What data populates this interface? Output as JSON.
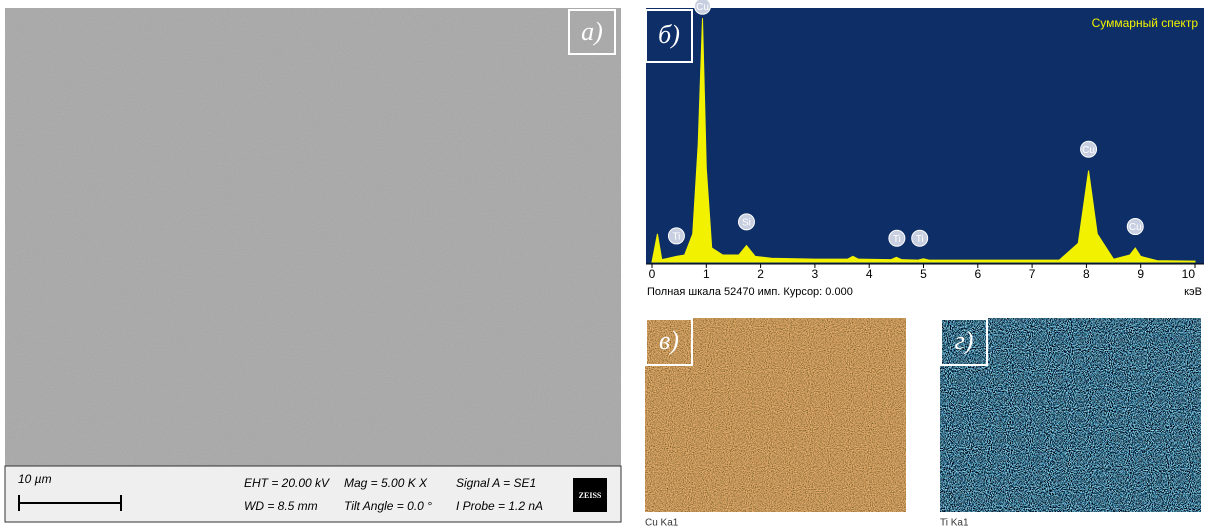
{
  "panel_labels": {
    "a": "а)",
    "b": "б)",
    "c": "в)",
    "d": "г)"
  },
  "sem": {
    "scale_bar": "10 µm",
    "eht": "EHT = 20.00 kV",
    "mag": "Mag =   5.00 K X",
    "signal": "Signal A = SE1",
    "wd": "WD =  8.5 mm",
    "tilt": "Tilt Angle =  0.0 °",
    "probe": "I Probe =    1.2 nA",
    "brand": "ZEISS"
  },
  "maps": {
    "cu": "Cu Ka1",
    "ti": "Ti Ka1"
  },
  "chart_data": {
    "type": "area",
    "title": "Суммарный спектр",
    "footer": "Полная шкала 52470 имп. Курсор: 0.000",
    "x_unit": "кэВ",
    "color": "#f2f200",
    "background": "#0d2e66",
    "xlim": [
      0,
      10
    ],
    "ylim": [
      0,
      52470
    ],
    "xticks": [
      0,
      1,
      2,
      3,
      4,
      5,
      6,
      7,
      8,
      9,
      10
    ],
    "x": [
      0,
      0.05,
      0.1,
      0.18,
      0.3,
      0.45,
      0.6,
      0.75,
      0.85,
      0.93,
      1.0,
      1.1,
      1.3,
      1.6,
      1.74,
      1.9,
      2.2,
      3.0,
      3.6,
      3.7,
      3.8,
      4.4,
      4.5,
      4.6,
      4.9,
      5.0,
      5.1,
      6.0,
      7.5,
      7.85,
      8.04,
      8.2,
      8.5,
      8.8,
      8.9,
      9.0,
      9.3,
      10
    ],
    "values": [
      0,
      3000,
      6000,
      500,
      800,
      1200,
      1500,
      6000,
      25000,
      52000,
      20000,
      3000,
      1500,
      1500,
      3500,
      1200,
      800,
      600,
      600,
      1200,
      600,
      500,
      1000,
      500,
      400,
      700,
      400,
      400,
      400,
      4000,
      19500,
      6000,
      600,
      1500,
      3000,
      1200,
      300,
      200
    ],
    "annotations": [
      {
        "text": "Cu",
        "x": 0.93,
        "y": 52000
      },
      {
        "text": "Ti",
        "x": 0.45,
        "y": 3000
      },
      {
        "text": "Si",
        "x": 1.74,
        "y": 6000
      },
      {
        "text": "Ti",
        "x": 4.51,
        "y": 2500
      },
      {
        "text": "Ti",
        "x": 4.93,
        "y": 2500
      },
      {
        "text": "Cu",
        "x": 8.04,
        "y": 21500
      },
      {
        "text": "Cu",
        "x": 8.9,
        "y": 5000
      }
    ]
  }
}
